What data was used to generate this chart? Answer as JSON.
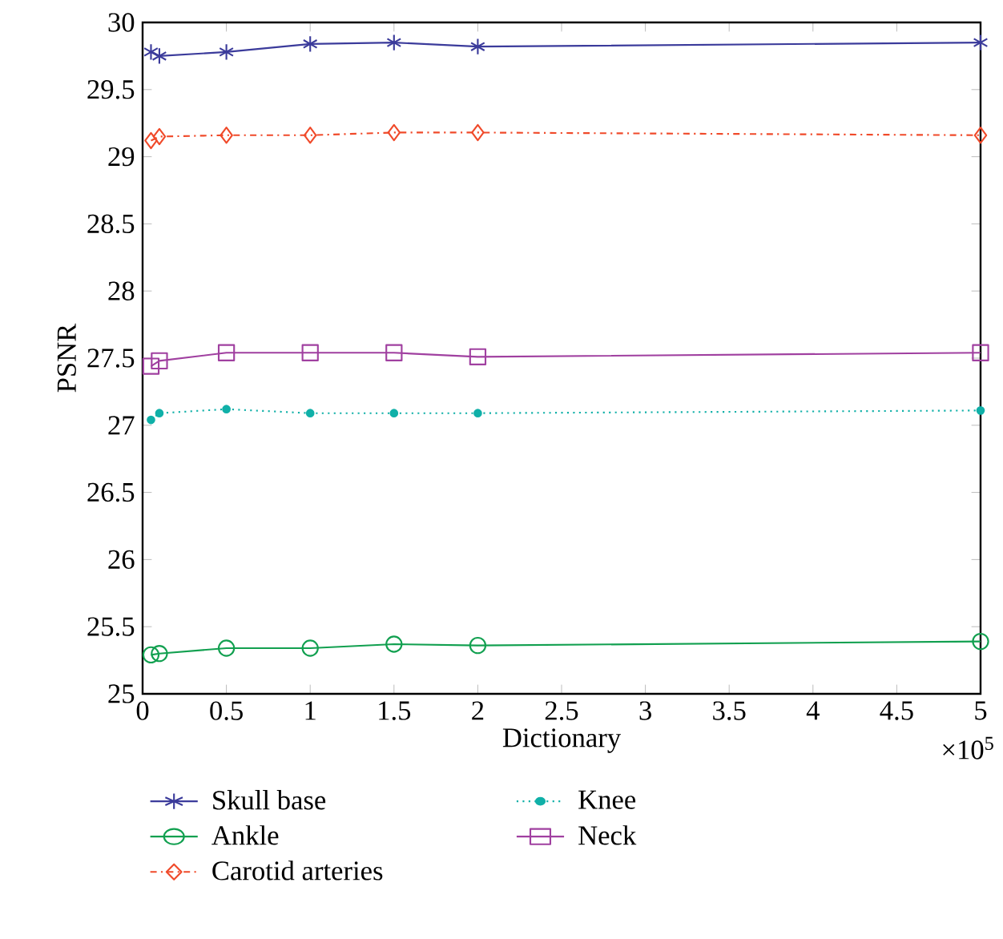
{
  "chart_data": {
    "type": "line",
    "xlabel": "Dictionary",
    "ylabel": "PSNR",
    "annotations": [
      "×10$^{5}$"
    ],
    "x": [
      0.05,
      0.1,
      0.5,
      1,
      1.5,
      2,
      5
    ],
    "series": [
      {
        "name": "Skull base",
        "color": "#3b3b9b",
        "marker": "cross",
        "line_style": "solid",
        "values": [
          29.78,
          29.75,
          29.78,
          29.84,
          29.85,
          29.82,
          29.85
        ]
      },
      {
        "name": "Ankle",
        "color": "#12a050",
        "marker": "circle",
        "line_style": "solid",
        "values": [
          25.29,
          25.3,
          25.34,
          25.34,
          25.37,
          25.36,
          25.39
        ]
      },
      {
        "name": "Carotid arteries",
        "color": "#f04a2a",
        "marker": "diamond",
        "line_style": "dashdot",
        "values": [
          29.12,
          29.15,
          29.16,
          29.16,
          29.18,
          29.18,
          29.16
        ]
      },
      {
        "name": "Knee",
        "color": "#10b0a8",
        "marker": "dot",
        "line_style": "dotted",
        "values": [
          27.04,
          27.09,
          27.12,
          27.09,
          27.09,
          27.09,
          27.11
        ]
      },
      {
        "name": "Neck",
        "color": "#a040a0",
        "marker": "square",
        "line_style": "solid",
        "values": [
          27.44,
          27.48,
          27.54,
          27.54,
          27.54,
          27.51,
          27.54
        ]
      }
    ],
    "xlim": [
      0,
      5
    ],
    "xticks": [
      0,
      0.5,
      1,
      1.5,
      2,
      2.5,
      3,
      3.5,
      4,
      4.5,
      5
    ],
    "ylim": [
      25,
      30
    ],
    "yticks": [
      25,
      25.5,
      26,
      26.5,
      27,
      27.5,
      28,
      28.5,
      29,
      29.5,
      30
    ],
    "grid": false,
    "legend": "bottom"
  }
}
